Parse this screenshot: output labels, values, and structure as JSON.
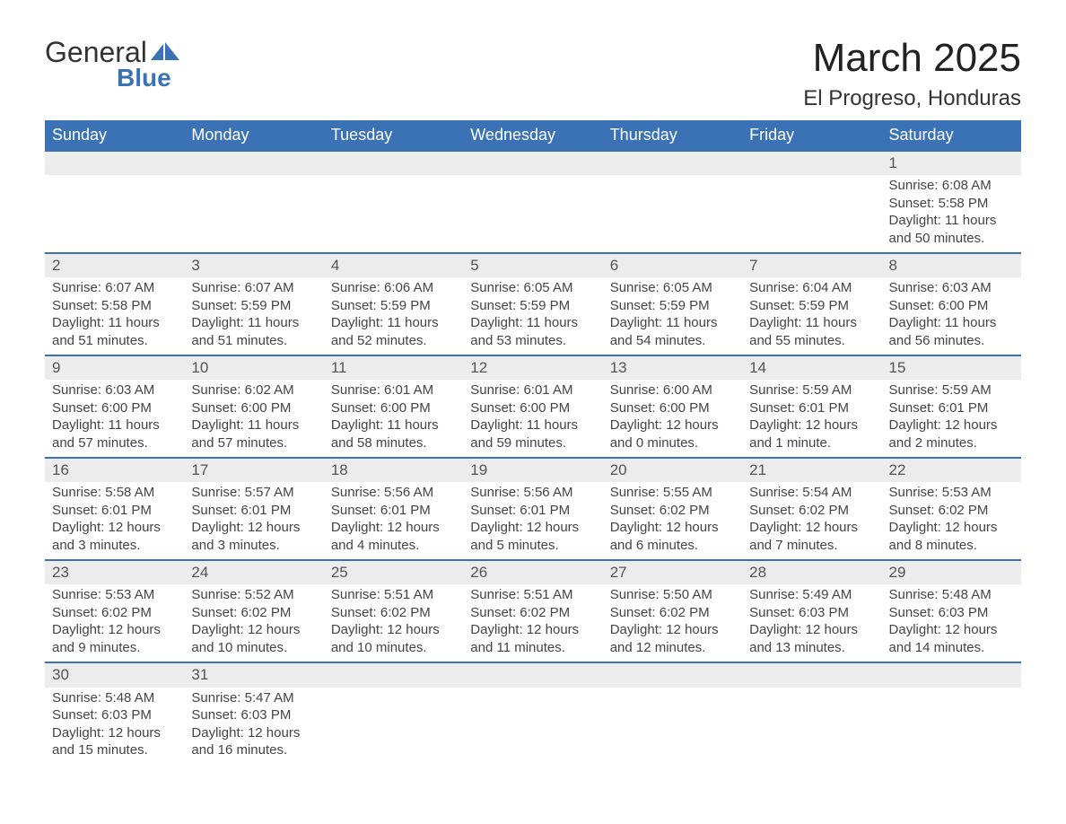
{
  "brand": {
    "word1": "General",
    "word2": "Blue",
    "color": "#3a72b5"
  },
  "title": "March 2025",
  "location": "El Progreso, Honduras",
  "headers": [
    "Sunday",
    "Monday",
    "Tuesday",
    "Wednesday",
    "Thursday",
    "Friday",
    "Saturday"
  ],
  "colors": {
    "header_bg": "#3a72b5",
    "header_text": "#ffffff",
    "row_sep": "#3a72b5",
    "daynum_bg": "#ececec",
    "text": "#444444"
  },
  "weeks": [
    [
      null,
      null,
      null,
      null,
      null,
      null,
      {
        "n": "1",
        "sr": "6:08 AM",
        "ss": "5:58 PM",
        "dl": "11 hours and 50 minutes."
      }
    ],
    [
      {
        "n": "2",
        "sr": "6:07 AM",
        "ss": "5:58 PM",
        "dl": "11 hours and 51 minutes."
      },
      {
        "n": "3",
        "sr": "6:07 AM",
        "ss": "5:59 PM",
        "dl": "11 hours and 51 minutes."
      },
      {
        "n": "4",
        "sr": "6:06 AM",
        "ss": "5:59 PM",
        "dl": "11 hours and 52 minutes."
      },
      {
        "n": "5",
        "sr": "6:05 AM",
        "ss": "5:59 PM",
        "dl": "11 hours and 53 minutes."
      },
      {
        "n": "6",
        "sr": "6:05 AM",
        "ss": "5:59 PM",
        "dl": "11 hours and 54 minutes."
      },
      {
        "n": "7",
        "sr": "6:04 AM",
        "ss": "5:59 PM",
        "dl": "11 hours and 55 minutes."
      },
      {
        "n": "8",
        "sr": "6:03 AM",
        "ss": "6:00 PM",
        "dl": "11 hours and 56 minutes."
      }
    ],
    [
      {
        "n": "9",
        "sr": "6:03 AM",
        "ss": "6:00 PM",
        "dl": "11 hours and 57 minutes."
      },
      {
        "n": "10",
        "sr": "6:02 AM",
        "ss": "6:00 PM",
        "dl": "11 hours and 57 minutes."
      },
      {
        "n": "11",
        "sr": "6:01 AM",
        "ss": "6:00 PM",
        "dl": "11 hours and 58 minutes."
      },
      {
        "n": "12",
        "sr": "6:01 AM",
        "ss": "6:00 PM",
        "dl": "11 hours and 59 minutes."
      },
      {
        "n": "13",
        "sr": "6:00 AM",
        "ss": "6:00 PM",
        "dl": "12 hours and 0 minutes."
      },
      {
        "n": "14",
        "sr": "5:59 AM",
        "ss": "6:01 PM",
        "dl": "12 hours and 1 minute."
      },
      {
        "n": "15",
        "sr": "5:59 AM",
        "ss": "6:01 PM",
        "dl": "12 hours and 2 minutes."
      }
    ],
    [
      {
        "n": "16",
        "sr": "5:58 AM",
        "ss": "6:01 PM",
        "dl": "12 hours and 3 minutes."
      },
      {
        "n": "17",
        "sr": "5:57 AM",
        "ss": "6:01 PM",
        "dl": "12 hours and 3 minutes."
      },
      {
        "n": "18",
        "sr": "5:56 AM",
        "ss": "6:01 PM",
        "dl": "12 hours and 4 minutes."
      },
      {
        "n": "19",
        "sr": "5:56 AM",
        "ss": "6:01 PM",
        "dl": "12 hours and 5 minutes."
      },
      {
        "n": "20",
        "sr": "5:55 AM",
        "ss": "6:02 PM",
        "dl": "12 hours and 6 minutes."
      },
      {
        "n": "21",
        "sr": "5:54 AM",
        "ss": "6:02 PM",
        "dl": "12 hours and 7 minutes."
      },
      {
        "n": "22",
        "sr": "5:53 AM",
        "ss": "6:02 PM",
        "dl": "12 hours and 8 minutes."
      }
    ],
    [
      {
        "n": "23",
        "sr": "5:53 AM",
        "ss": "6:02 PM",
        "dl": "12 hours and 9 minutes."
      },
      {
        "n": "24",
        "sr": "5:52 AM",
        "ss": "6:02 PM",
        "dl": "12 hours and 10 minutes."
      },
      {
        "n": "25",
        "sr": "5:51 AM",
        "ss": "6:02 PM",
        "dl": "12 hours and 10 minutes."
      },
      {
        "n": "26",
        "sr": "5:51 AM",
        "ss": "6:02 PM",
        "dl": "12 hours and 11 minutes."
      },
      {
        "n": "27",
        "sr": "5:50 AM",
        "ss": "6:02 PM",
        "dl": "12 hours and 12 minutes."
      },
      {
        "n": "28",
        "sr": "5:49 AM",
        "ss": "6:03 PM",
        "dl": "12 hours and 13 minutes."
      },
      {
        "n": "29",
        "sr": "5:48 AM",
        "ss": "6:03 PM",
        "dl": "12 hours and 14 minutes."
      }
    ],
    [
      {
        "n": "30",
        "sr": "5:48 AM",
        "ss": "6:03 PM",
        "dl": "12 hours and 15 minutes."
      },
      {
        "n": "31",
        "sr": "5:47 AM",
        "ss": "6:03 PM",
        "dl": "12 hours and 16 minutes."
      },
      null,
      null,
      null,
      null,
      null
    ]
  ],
  "labels": {
    "sunrise": "Sunrise: ",
    "sunset": "Sunset: ",
    "daylight": "Daylight: "
  }
}
